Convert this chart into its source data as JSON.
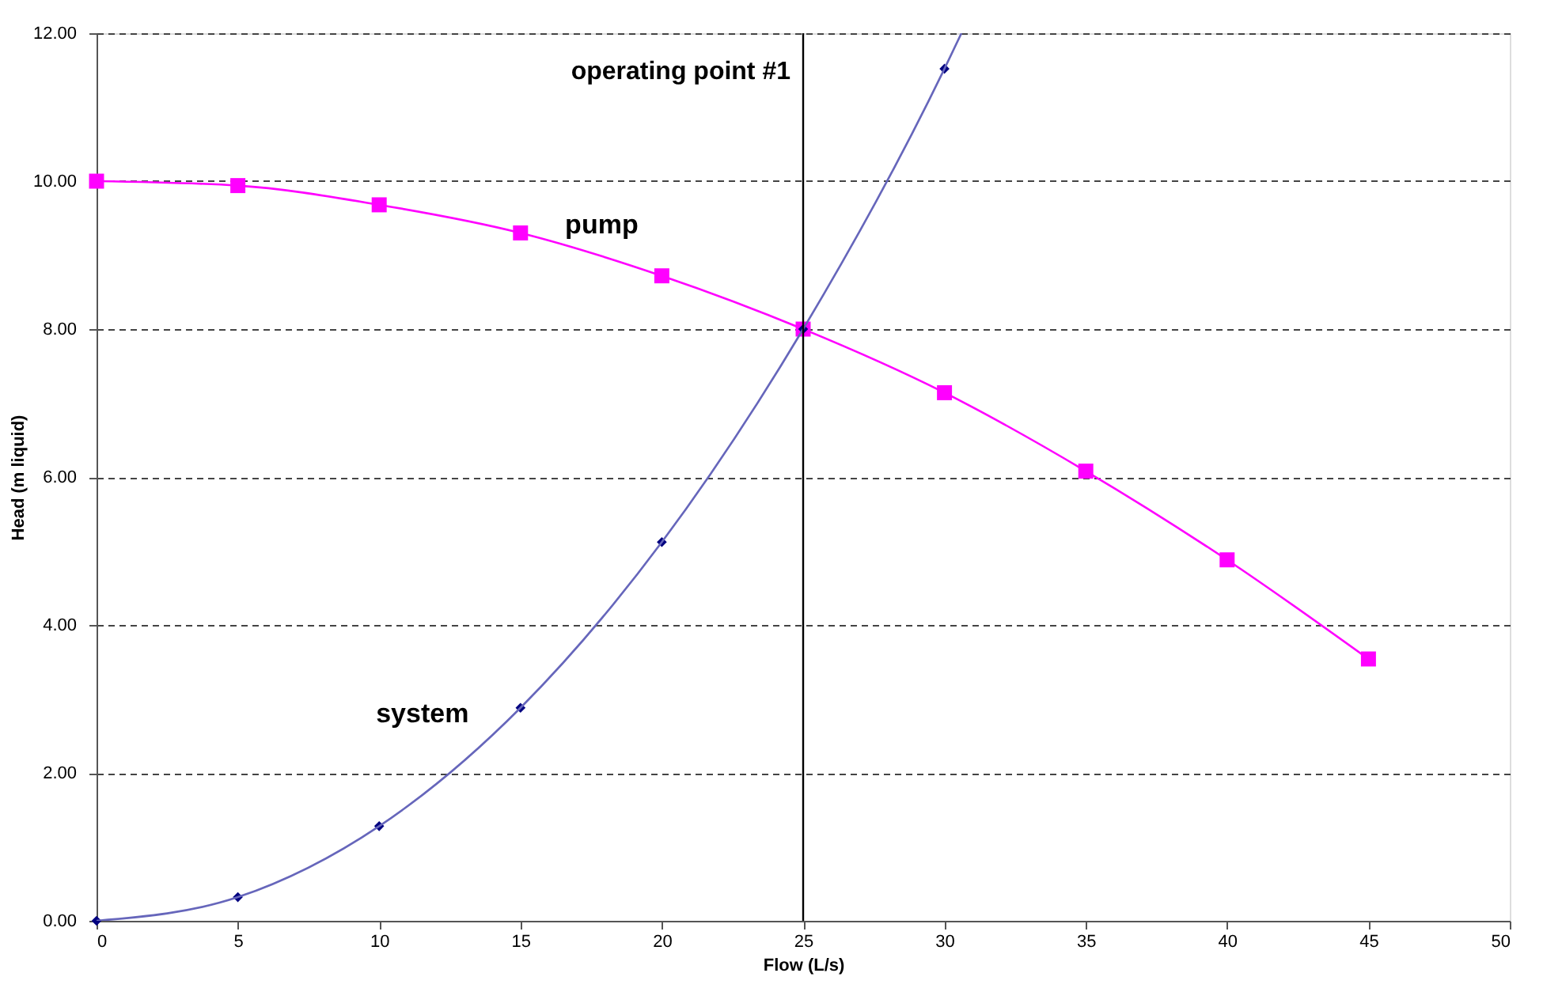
{
  "chart_data": {
    "type": "line",
    "xlabel": "Flow (L/s)",
    "ylabel": "Head (m liquid)",
    "xlim": [
      0,
      50
    ],
    "xticks": [
      0,
      5,
      10,
      15,
      20,
      25,
      30,
      35,
      40,
      45,
      50
    ],
    "ylim": [
      0,
      12
    ],
    "yticks": [
      {
        "value": 0,
        "label": "0.00"
      },
      {
        "value": 2,
        "label": "2.00"
      },
      {
        "value": 4,
        "label": "4.00"
      },
      {
        "value": 6,
        "label": "6.00"
      },
      {
        "value": 8,
        "label": "8.00"
      },
      {
        "value": 10,
        "label": "10.00"
      },
      {
        "value": 12,
        "label": "12.00"
      }
    ],
    "grid": "y",
    "line_style": "solid",
    "series": [
      {
        "name": "pump",
        "type": "line",
        "marker": "square",
        "color": "#ff00ff",
        "x": [
          0,
          5,
          10,
          15,
          20,
          25,
          30,
          35,
          40,
          45
        ],
        "values": [
          10.0,
          9.94,
          9.68,
          9.3,
          8.72,
          8.0,
          7.14,
          6.08,
          4.88,
          3.54
        ]
      },
      {
        "name": "system",
        "type": "scatter",
        "marker": "diamond",
        "color": "#000080",
        "x": [
          0,
          5,
          10,
          15,
          20,
          25,
          30
        ],
        "values": [
          0,
          0.32,
          1.28,
          2.88,
          5.12,
          8.0,
          11.52
        ]
      },
      {
        "type": "line",
        "marker": "none",
        "color": "#6666bb",
        "x": [
          0,
          5,
          10,
          15,
          20,
          25,
          30,
          30.6
        ],
        "values": [
          0,
          0.32,
          1.28,
          2.88,
          5.12,
          8.0,
          11.52,
          12.0
        ]
      }
    ],
    "ref_lines": [
      {
        "axis": "x",
        "value": 25,
        "label": "operating point #1",
        "color": "#000000"
      }
    ]
  }
}
